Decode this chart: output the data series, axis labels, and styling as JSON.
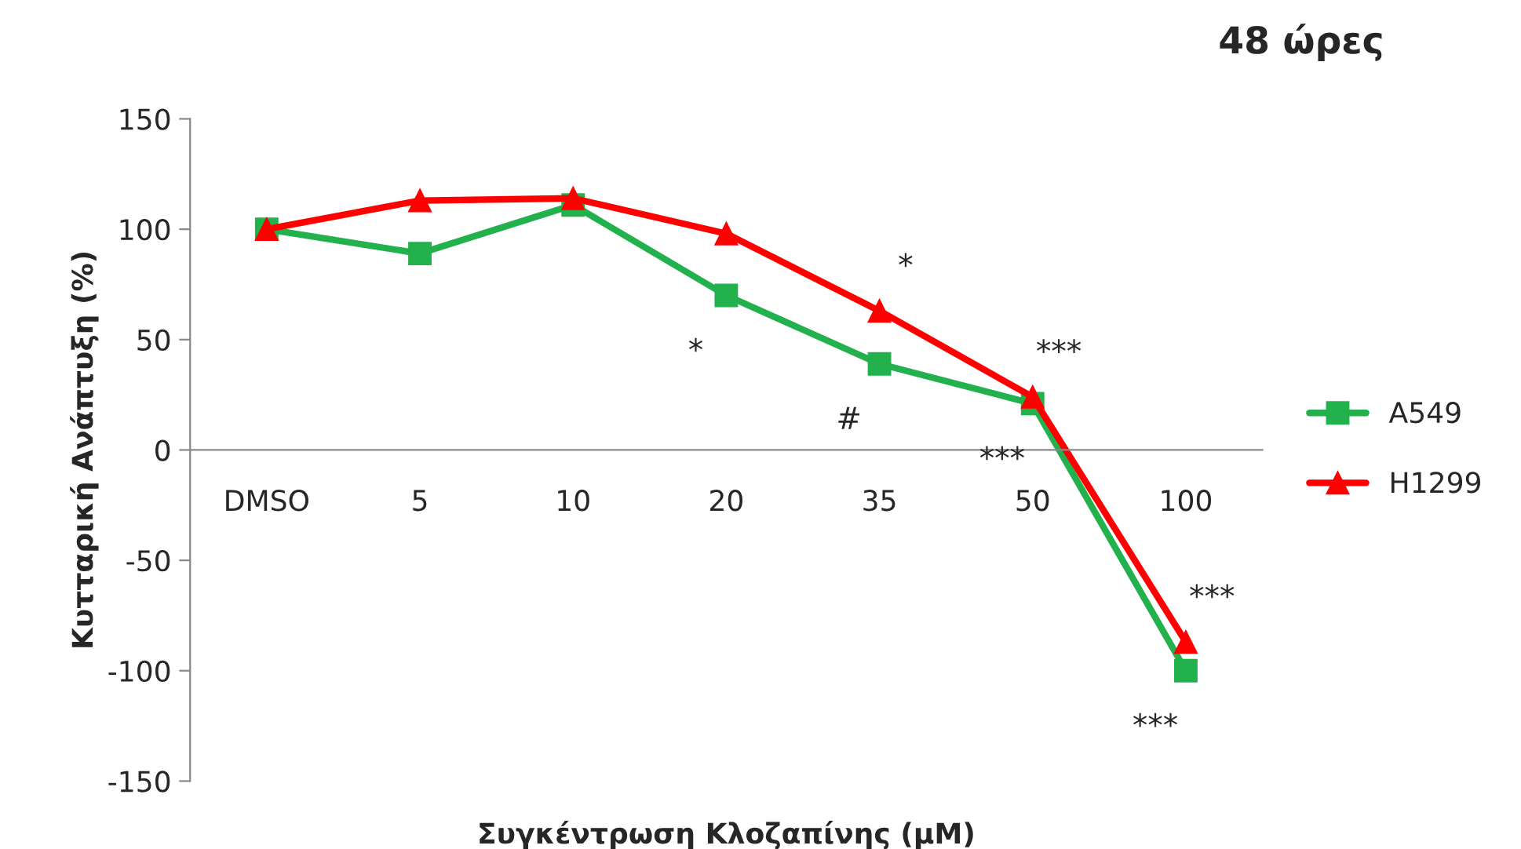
{
  "chart_data": {
    "type": "line",
    "title": "48 ώρες",
    "xlabel": "Συγκέντρωση Κλοζαπίνης (μM)",
    "ylabel": "Κυτταρική Ανάπτυξη (%)",
    "categories": [
      "DMSO",
      "5",
      "10",
      "20",
      "35",
      "50",
      "100"
    ],
    "series": [
      {
        "name": "A549",
        "color": "#22b14c",
        "marker": "square",
        "values": [
          100,
          89,
          111,
          70,
          39,
          21,
          -100
        ]
      },
      {
        "name": "H1299",
        "color": "#ff0000",
        "marker": "triangle",
        "values": [
          100,
          113,
          114,
          98,
          63,
          24,
          -87
        ]
      }
    ],
    "ylim": [
      -150,
      150
    ],
    "yticks": [
      -150,
      -100,
      -50,
      0,
      50,
      100,
      150
    ],
    "grid": false,
    "legend": "right",
    "line_style": "solid",
    "annotations": [
      {
        "text": "*",
        "x": "20",
        "y": 70
      },
      {
        "text": "*",
        "x": "35",
        "y": 63
      },
      {
        "text": "#",
        "x": "35",
        "y": 39
      },
      {
        "text": "***",
        "x": "50",
        "y": 24
      },
      {
        "text": "***",
        "x": "50",
        "y": 21
      },
      {
        "text": "***",
        "x": "100",
        "y": -87
      },
      {
        "text": "***",
        "x": "100",
        "y": -100
      }
    ]
  }
}
